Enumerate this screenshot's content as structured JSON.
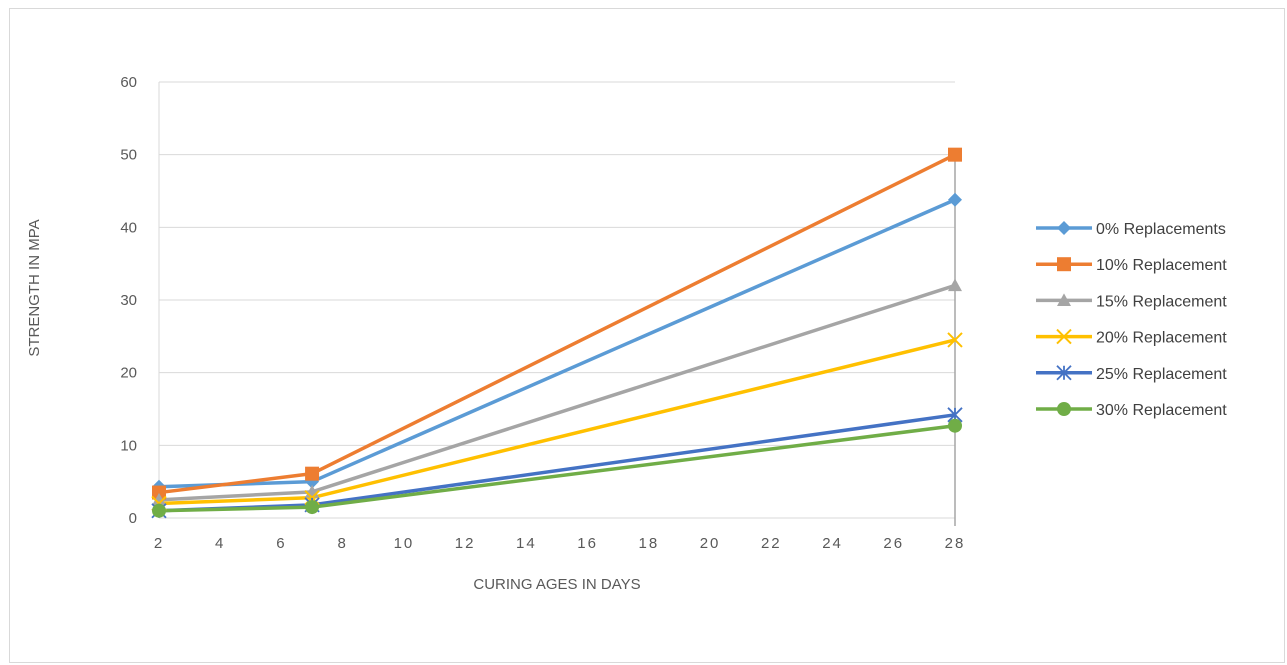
{
  "chart_data": {
    "type": "line",
    "title": "",
    "xlabel": "CURING AGES IN DAYS",
    "ylabel": "STRENGTH IN MPA",
    "xlim": [
      2,
      28
    ],
    "ylim": [
      0,
      60
    ],
    "x_ticks": [
      "2",
      "4",
      "6",
      "8",
      "10",
      "12",
      "14",
      "16",
      "18",
      "20",
      "22",
      "24",
      "26",
      "28"
    ],
    "y_ticks": [
      "0",
      "10",
      "20",
      "30",
      "40",
      "50",
      "60"
    ],
    "grid": "horizontal",
    "legend_position": "right",
    "x": [
      2,
      7,
      28
    ],
    "series": [
      {
        "name": "0% Replacements",
        "values": [
          4.3,
          5.0,
          43.8
        ],
        "color": "#5B9BD5",
        "marker": "diamond"
      },
      {
        "name": "10% Replacement",
        "values": [
          3.5,
          6.1,
          50.0
        ],
        "color": "#ED7D31",
        "marker": "square"
      },
      {
        "name": "15% Replacement",
        "values": [
          2.5,
          3.6,
          32.0
        ],
        "color": "#A5A5A5",
        "marker": "triangle"
      },
      {
        "name": "20% Replacement",
        "values": [
          2.0,
          2.8,
          24.5
        ],
        "color": "#FFC000",
        "marker": "x"
      },
      {
        "name": "25% Replacement",
        "values": [
          1.0,
          1.8,
          14.2
        ],
        "color": "#4472C4",
        "marker": "star"
      },
      {
        "name": "30% Replacement",
        "values": [
          1.0,
          1.5,
          12.7
        ],
        "color": "#70AD47",
        "marker": "circle"
      }
    ]
  }
}
